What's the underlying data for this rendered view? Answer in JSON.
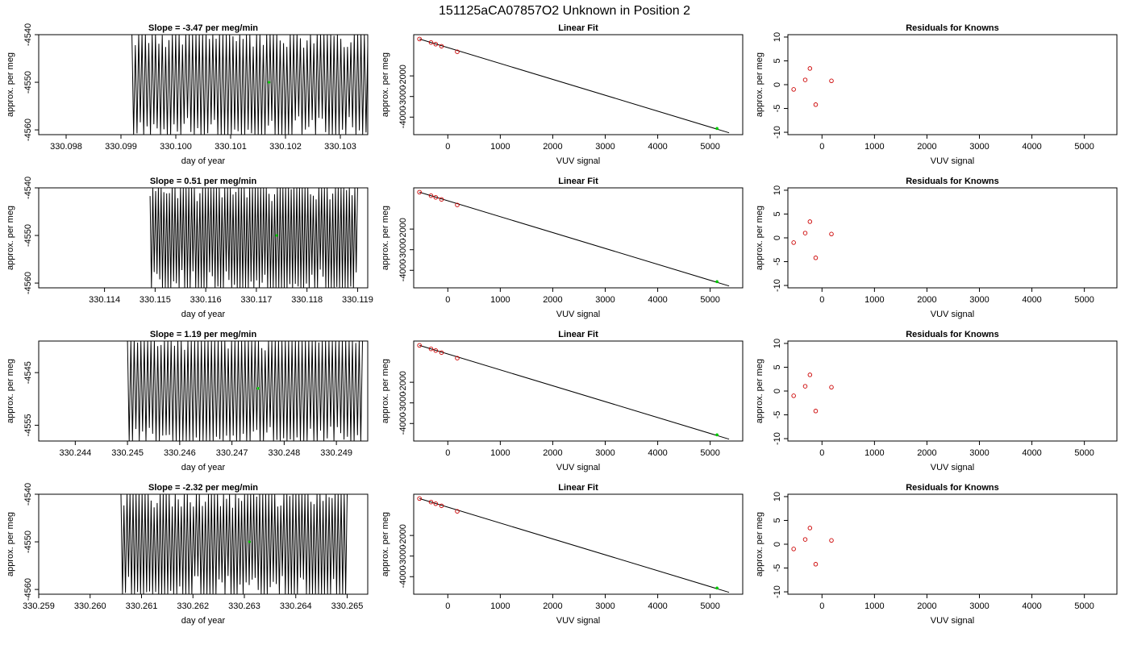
{
  "page_title": {
    "run": "151125a",
    "cylinder": "CA07857",
    "label": "O2 Unknown in Position  2"
  },
  "axis_labels": {
    "ts_x": "day of year",
    "ts_y": "approx. per meg",
    "fit_x": "VUV signal",
    "fit_y": "approx. per meg",
    "res_x": "VUV signal",
    "res_y": "approx. per meg"
  },
  "fit_title": "Linear Fit",
  "residual_title": "Residuals for Knowns",
  "colors": {
    "line": "#000000",
    "known_points": "#cc0000",
    "unknown_point": "#00cc00"
  },
  "chart_data": [
    {
      "type": "line",
      "row": 1,
      "title": "Slope =  -3.47  per meg/min",
      "xlabel": "day of year",
      "ylabel": "approx. per meg",
      "xlim": [
        330.0975,
        330.1035
      ],
      "ylim": [
        -4561,
        -4540
      ],
      "xticks": [
        "330.098",
        "330.099",
        "330.100",
        "330.101",
        "330.102",
        "330.103"
      ],
      "yticks": [
        "-4540",
        "-4550",
        "-4560"
      ],
      "data_x_range": [
        330.0992,
        330.1035
      ],
      "oscillation": {
        "center": -4550,
        "amplitude": 13,
        "clip": [
          -4561,
          -4540
        ],
        "approx_cycles": 70
      },
      "marker": {
        "x": 330.1017,
        "y": -4550,
        "color": "#00cc00"
      }
    },
    {
      "type": "line",
      "row": 2,
      "title": "Slope =  0.51  per meg/min",
      "xlabel": "day of year",
      "ylabel": "approx. per meg",
      "xlim": [
        330.1127,
        330.1192
      ],
      "ylim": [
        -4561,
        -4540
      ],
      "xticks": [
        "330.114",
        "330.115",
        "330.116",
        "330.117",
        "330.118",
        "330.119"
      ],
      "yticks": [
        "-4540",
        "-4550",
        "-4560"
      ],
      "data_x_range": [
        330.1149,
        330.119
      ],
      "oscillation": {
        "center": -4550,
        "amplitude": 13,
        "clip": [
          -4561,
          -4540
        ],
        "approx_cycles": 75
      },
      "marker": {
        "x": 330.1174,
        "y": -4550,
        "color": "#00cc00"
      }
    },
    {
      "type": "line",
      "row": 3,
      "title": "Slope =  1.19  per meg/min",
      "xlabel": "day of year",
      "ylabel": "approx. per meg",
      "xlim": [
        330.2433,
        330.2496
      ],
      "ylim": [
        -4558,
        -4539
      ],
      "xticks": [
        "330.244",
        "330.245",
        "330.246",
        "330.247",
        "330.248",
        "330.249"
      ],
      "yticks": [
        "-4545",
        "-4555"
      ],
      "data_x_range": [
        330.245,
        330.2495
      ],
      "oscillation": {
        "center": -4548,
        "amplitude": 13,
        "clip": [
          -4558,
          -4539
        ],
        "approx_cycles": 70
      },
      "marker": {
        "x": 330.2475,
        "y": -4548,
        "color": "#00cc00"
      }
    },
    {
      "type": "line",
      "row": 4,
      "title": "Slope =  -2.32  per meg/min",
      "xlabel": "day of year",
      "ylabel": "approx. per meg",
      "xlim": [
        330.259,
        330.2654
      ],
      "ylim": [
        -4561,
        -4540
      ],
      "xticks": [
        "330.259",
        "330.260",
        "330.261",
        "330.262",
        "330.263",
        "330.264",
        "330.265"
      ],
      "yticks": [
        "-4540",
        "-4550",
        "-4560"
      ],
      "data_x_range": [
        330.2606,
        330.265
      ],
      "oscillation": {
        "center": -4550,
        "amplitude": 13,
        "clip": [
          -4561,
          -4540
        ],
        "approx_cycles": 75
      },
      "marker": {
        "x": 330.2631,
        "y": -4550,
        "color": "#00cc00"
      }
    },
    {
      "type": "scatter",
      "panel": "fit",
      "title": "Linear Fit",
      "xlabel": "VUV signal",
      "ylabel": "approx. per meg",
      "xlim": [
        -650,
        5620
      ],
      "ylim": [
        -4850,
        0
      ],
      "xticks": [
        "0",
        "1000",
        "2000",
        "3000",
        "4000",
        "5000"
      ],
      "yticks": [
        "-2000",
        "-3000",
        "-4000"
      ],
      "known_points": [
        {
          "x": -540,
          "y": -210
        },
        {
          "x": -320,
          "y": -380
        },
        {
          "x": -230,
          "y": -460
        },
        {
          "x": -120,
          "y": -560
        },
        {
          "x": 180,
          "y": -830
        }
      ],
      "unknown_point": {
        "x": 5130,
        "y": -4550
      },
      "fit_line": {
        "x": [
          -540,
          5360
        ],
        "y": [
          -210,
          -4760
        ]
      }
    },
    {
      "type": "scatter",
      "panel": "residuals",
      "title": "Residuals for Knowns",
      "xlabel": "VUV signal",
      "ylabel": "approx. per meg",
      "xlim": [
        -650,
        5620
      ],
      "ylim": [
        -10.5,
        10.5
      ],
      "xticks": [
        "0",
        "1000",
        "2000",
        "3000",
        "4000",
        "5000"
      ],
      "yticks": [
        "10",
        "5",
        "0",
        "-5",
        "-10"
      ],
      "points": [
        {
          "x": -540,
          "y": -1
        },
        {
          "x": -320,
          "y": 1
        },
        {
          "x": -230,
          "y": 3.4
        },
        {
          "x": -120,
          "y": -4.2
        },
        {
          "x": 180,
          "y": 0.8
        }
      ]
    }
  ]
}
